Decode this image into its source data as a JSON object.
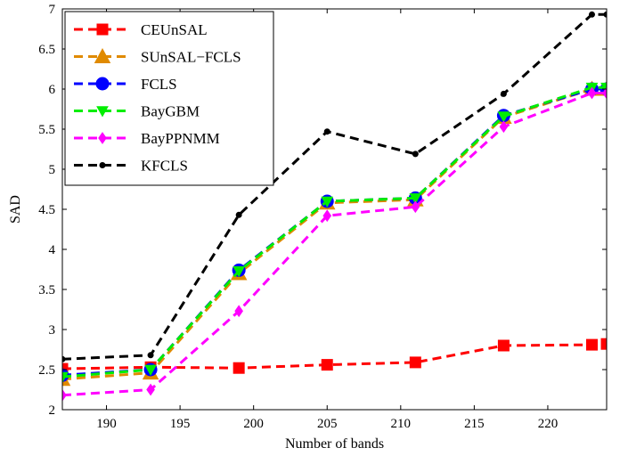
{
  "chart_data": {
    "type": "line",
    "title": "",
    "xlabel": "Number of bands",
    "ylabel": "SAD",
    "xlim": [
      187,
      224
    ],
    "ylim": [
      2,
      7
    ],
    "xticks": [
      190,
      195,
      200,
      205,
      210,
      215,
      220
    ],
    "yticks": [
      2,
      2.5,
      3,
      3.5,
      4,
      4.5,
      5,
      5.5,
      6,
      6.5,
      7
    ],
    "grid": false,
    "legend": "top-left",
    "x": [
      187,
      193,
      199,
      205,
      211,
      217,
      223,
      224
    ],
    "series": [
      {
        "name": "CEUnSAL",
        "color": "#ff0000",
        "marker": "square",
        "values": [
          2.51,
          2.53,
          2.52,
          2.56,
          2.59,
          2.8,
          2.81,
          2.82
        ]
      },
      {
        "name": "SUnSAL−FCLS",
        "color": "#e08a00",
        "marker": "triangle",
        "values": [
          2.38,
          2.46,
          3.7,
          4.58,
          4.62,
          5.65,
          6.0,
          6.0
        ]
      },
      {
        "name": "FCLS",
        "color": "#0000ff",
        "marker": "circle",
        "values": [
          2.43,
          2.5,
          3.74,
          4.6,
          4.64,
          5.67,
          6.0,
          6.0
        ]
      },
      {
        "name": "BayGBM",
        "color": "#00ee00",
        "marker": "triangle-down",
        "values": [
          2.41,
          2.5,
          3.73,
          4.6,
          4.64,
          5.66,
          6.02,
          6.02
        ]
      },
      {
        "name": "BayPPNMM",
        "color": "#ff00ff",
        "marker": "diamond",
        "values": [
          2.18,
          2.25,
          3.23,
          4.42,
          4.53,
          5.53,
          5.95,
          5.95
        ]
      },
      {
        "name": "KFCLS",
        "color": "#000000",
        "marker": "dot",
        "values": [
          2.63,
          2.68,
          4.43,
          5.47,
          5.19,
          5.94,
          6.93,
          6.93
        ]
      }
    ]
  }
}
